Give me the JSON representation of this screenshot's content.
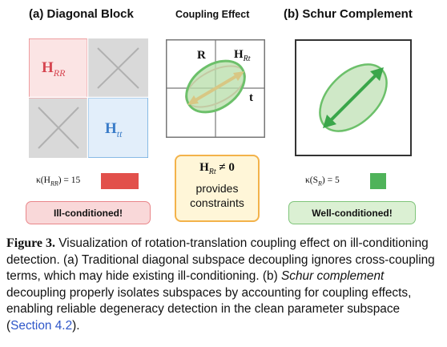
{
  "panel_a": {
    "title": "(a) Diagonal Block",
    "block_rr_label": "H",
    "block_rr_sub": "RR",
    "block_tt_label": "H",
    "block_tt_sub": "tt",
    "kappa_label": "κ(H",
    "kappa_sub": "RR",
    "kappa_value": ") = 15",
    "swatch_color": "#e2504b",
    "badge": "Ill-conditioned!"
  },
  "coupling": {
    "title": "Coupling Effect",
    "label_r": "R",
    "label_h": "H",
    "label_h_sub": "Rt",
    "label_t": "t",
    "note_math": "H",
    "note_math_sub": "Rt",
    "note_math_rest": " ≠ 0",
    "note_line1": "provides",
    "note_line2": "constraints"
  },
  "panel_b": {
    "title": "(b) Schur Complement",
    "kappa_label": "κ(S",
    "kappa_sub": "R",
    "kappa_value": ") = 5",
    "swatch_color": "#4fb35a",
    "badge": "Well-conditioned!"
  },
  "caption": {
    "figure_label": "Figure 3.",
    "text1": " Visualization of rotation-translation coupling effect on ill-conditioning detection. (a) Traditional diagonal subspace decoupling ignores cross-coupling terms, which may hide existing ill-conditioning. (b) ",
    "italic": "Schur complement",
    "text2": " decoupling properly isolates subspaces by accounting for coupling effects, enabling reliable degeneracy detection in the clean parameter subspace (",
    "link": "Section 4.2",
    "text3": ")."
  }
}
